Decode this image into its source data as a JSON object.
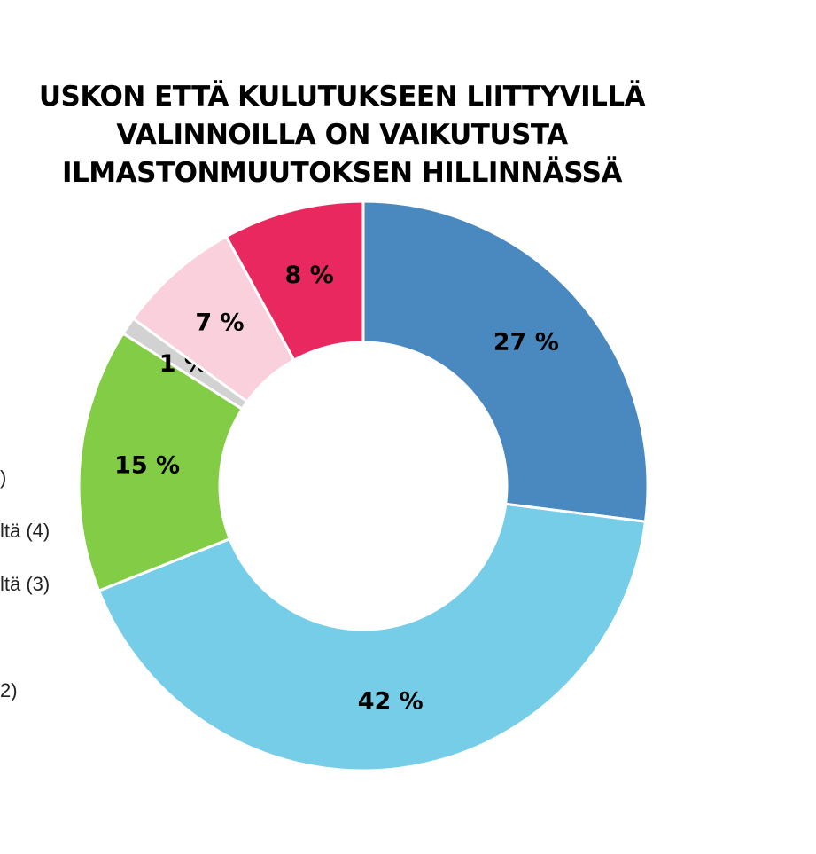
{
  "chart_data": {
    "type": "pie",
    "variant": "donut",
    "title_lines": [
      "USKON ETTÄ KULUTUKSEEN LIITTYVILLÄ",
      "VALINNOILLA ON VAIKUTUSTA",
      "ILMASTONMUUTOKSEN HILLINNÄSSÄ"
    ],
    "slices": [
      {
        "value": 27,
        "label": "27 %",
        "color": "#4A88C0"
      },
      {
        "value": 42,
        "label": "42 %",
        "color": "#76CDE8"
      },
      {
        "value": 15,
        "label": "15 %",
        "color": "#83CC45"
      },
      {
        "value": 1,
        "label": "1 %",
        "color": "#D2D2D2"
      },
      {
        "value": 7,
        "label": "7 %",
        "color": "#F9D0DC"
      },
      {
        "value": 8,
        "label": "8 %",
        "color": "#E8285E"
      }
    ],
    "legend_fragments": [
      ")",
      "ltä (4)",
      "ltä (3)",
      "2)"
    ]
  }
}
